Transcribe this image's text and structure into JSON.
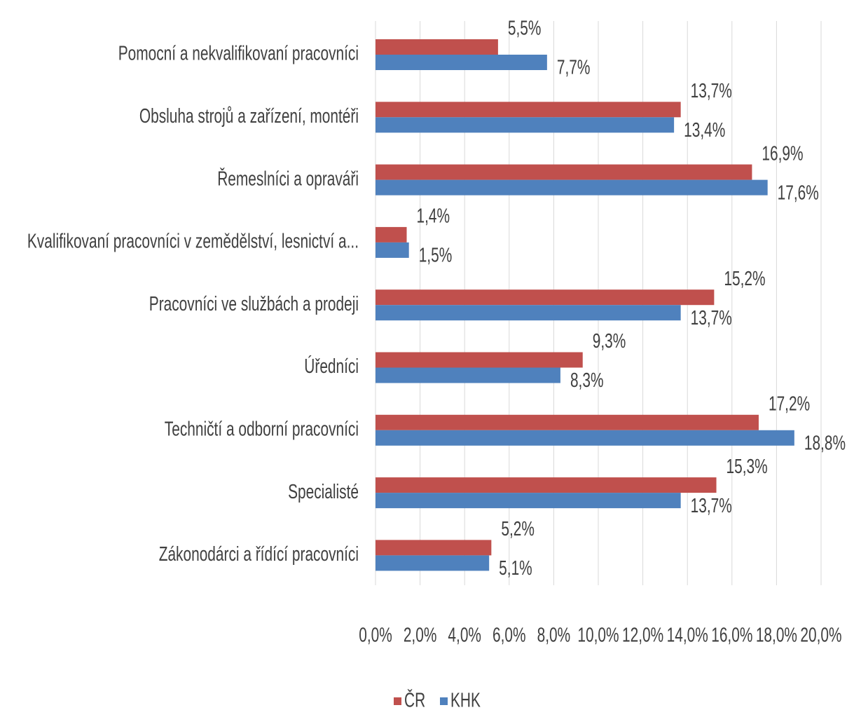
{
  "chart_data": {
    "type": "hbar",
    "categories": [
      "Pomocní a nekvalifikovaní pracovníci",
      "Obsluha strojů a zařízení, montéři",
      "Řemeslníci a opraváři",
      "Kvalifikovaní pracovníci v zemědělství, lesnictví a...",
      "Pracovníci ve službách a prodeji",
      "Úředníci",
      "Techničtí a odborní pracovníci",
      "Specialisté",
      "Zákonodárci a řídící pracovníci"
    ],
    "series": [
      {
        "name": "ČR",
        "color": "#c0504d",
        "values": [
          5.5,
          13.7,
          16.9,
          1.4,
          15.2,
          9.3,
          17.2,
          15.3,
          5.2
        ],
        "value_labels": [
          "5,5%",
          "13,7%",
          "16,9%",
          "1,4%",
          "15,2%",
          "9,3%",
          "17,2%",
          "15,3%",
          "5,2%"
        ]
      },
      {
        "name": "KHK",
        "color": "#4f81bd",
        "values": [
          7.7,
          13.4,
          17.6,
          1.5,
          13.7,
          8.3,
          18.8,
          13.7,
          5.1
        ],
        "value_labels": [
          "7,7%",
          "13,4%",
          "17,6%",
          "1,5%",
          "13,7%",
          "8,3%",
          "18,8%",
          "13,7%",
          "5,1%"
        ]
      }
    ],
    "xlim": [
      0,
      20
    ],
    "xticks": [
      {
        "value": 0,
        "label": "0,0%"
      },
      {
        "value": 2,
        "label": "2,0%"
      },
      {
        "value": 4,
        "label": "4,0%"
      },
      {
        "value": 6,
        "label": "6,0%"
      },
      {
        "value": 8,
        "label": "8,0%"
      },
      {
        "value": 10,
        "label": "10,0%"
      },
      {
        "value": 12,
        "label": "12,0%"
      },
      {
        "value": 14,
        "label": "14,0%"
      },
      {
        "value": 16,
        "label": "16,0%"
      },
      {
        "value": 18,
        "label": "18,0%"
      },
      {
        "value": 20,
        "label": "20,0%"
      }
    ],
    "grid": true,
    "legend": "bottom"
  }
}
